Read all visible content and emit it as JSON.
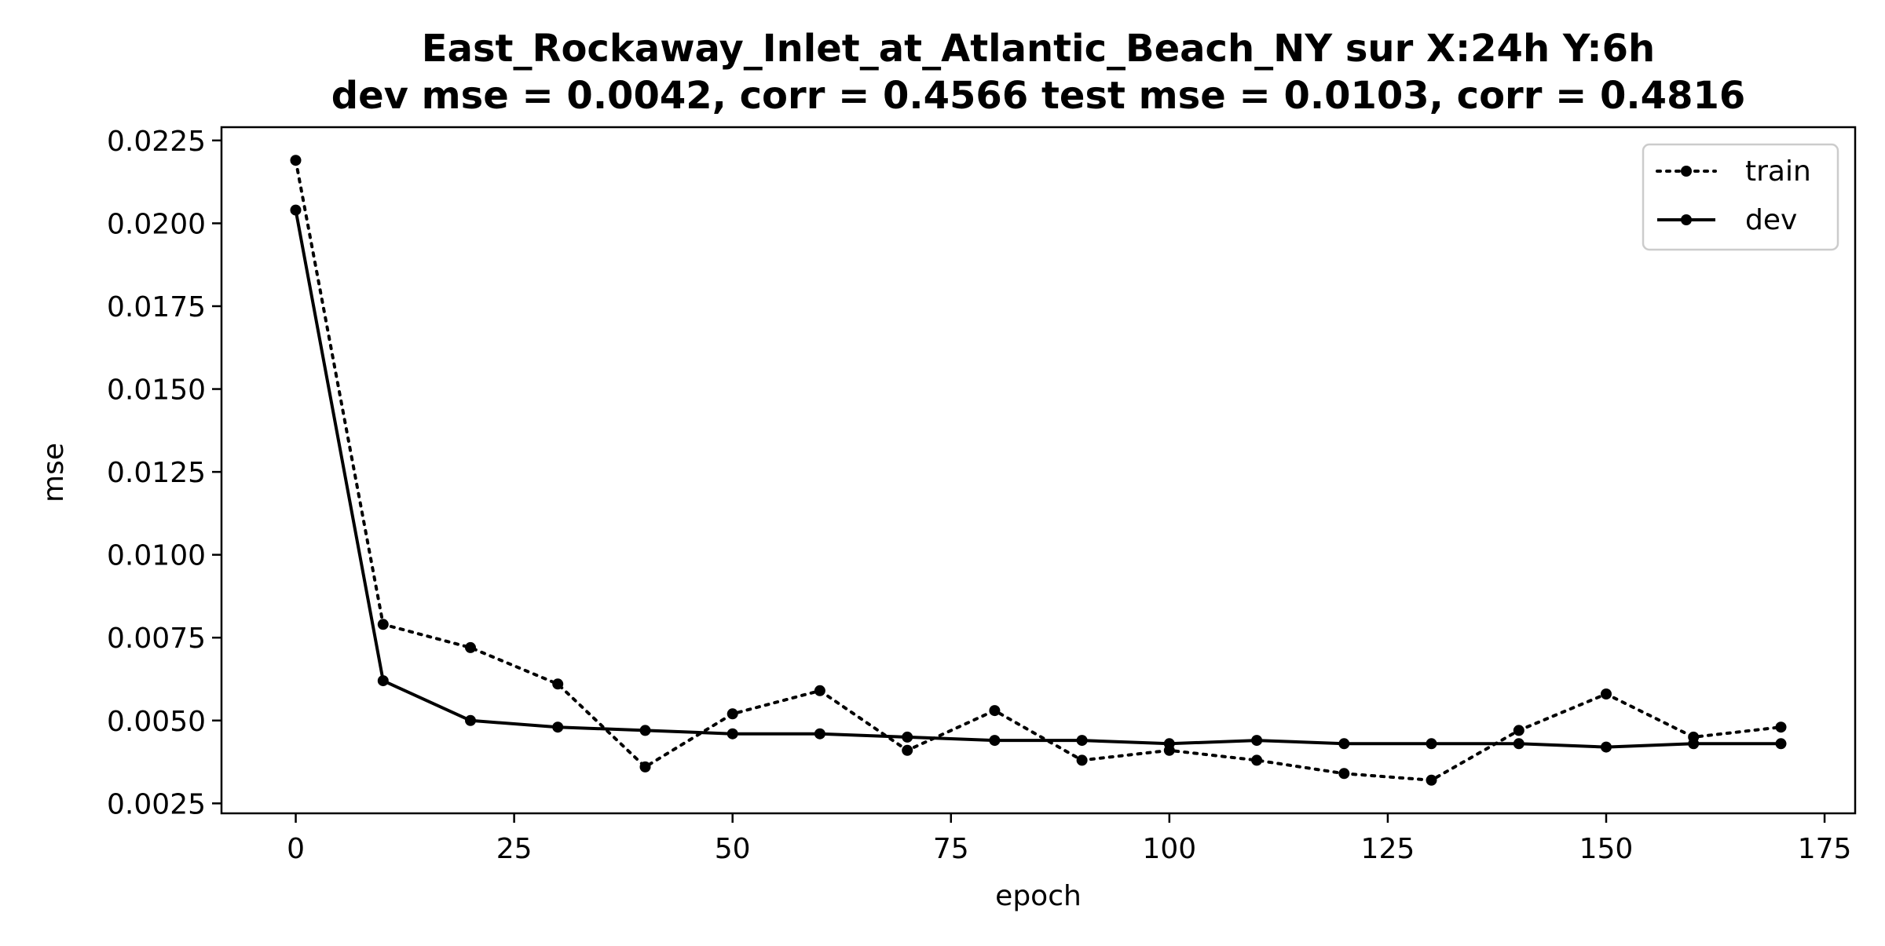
{
  "chart_data": {
    "type": "line",
    "title_line1": "East_Rockaway_Inlet_at_Atlantic_Beach_NY   sur   X:24h   Y:6h",
    "title_line2": "dev mse = 0.0042, corr = 0.4566   test mse = 0.0103, corr = 0.4816",
    "xlabel": "epoch",
    "ylabel": "mse",
    "xlim": [
      -8.5,
      178.5
    ],
    "ylim": [
      0.0022,
      0.0229
    ],
    "xticks": [
      0,
      25,
      50,
      75,
      100,
      125,
      150,
      175
    ],
    "xtick_labels": [
      "0",
      "25",
      "50",
      "75",
      "100",
      "125",
      "150",
      "175"
    ],
    "yticks": [
      0.0025,
      0.005,
      0.0075,
      0.01,
      0.0125,
      0.015,
      0.0175,
      0.02,
      0.0225
    ],
    "ytick_labels": [
      "0.0025",
      "0.0050",
      "0.0075",
      "0.0100",
      "0.0125",
      "0.0150",
      "0.0175",
      "0.0200",
      "0.0225"
    ],
    "x": [
      0,
      10,
      20,
      30,
      40,
      50,
      60,
      70,
      80,
      90,
      100,
      110,
      120,
      130,
      140,
      150,
      160,
      170
    ],
    "series": [
      {
        "name": "train",
        "style": "dotted",
        "color": "#000000",
        "values": [
          0.0219,
          0.0079,
          0.0072,
          0.0061,
          0.0036,
          0.0052,
          0.0059,
          0.0041,
          0.0053,
          0.0038,
          0.0041,
          0.0038,
          0.0034,
          0.0032,
          0.0047,
          0.0058,
          0.0045,
          0.0048
        ]
      },
      {
        "name": "dev",
        "style": "solid",
        "color": "#000000",
        "values": [
          0.0204,
          0.0062,
          0.005,
          0.0048,
          0.0047,
          0.0046,
          0.0046,
          0.0045,
          0.0044,
          0.0044,
          0.0043,
          0.0044,
          0.0043,
          0.0043,
          0.0043,
          0.0042,
          0.0043,
          0.0043
        ]
      }
    ],
    "legend_position": "top-right",
    "grid": false
  }
}
